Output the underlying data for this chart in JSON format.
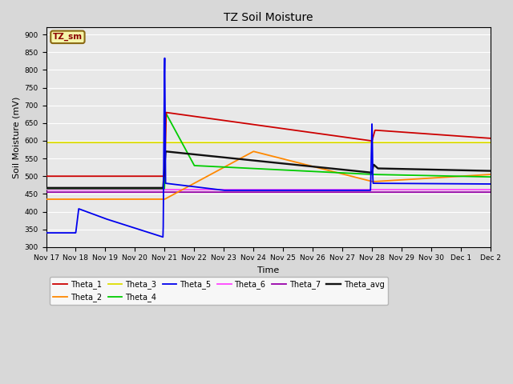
{
  "title": "TZ Soil Moisture",
  "ylabel": "Soil Moisture (mV)",
  "xlabel": "Time",
  "ylim": [
    300,
    920
  ],
  "yticks": [
    300,
    350,
    400,
    450,
    500,
    550,
    600,
    650,
    700,
    750,
    800,
    850,
    900
  ],
  "bg_color": "#d8d8d8",
  "plot_bg_color": "#e8e8e8",
  "legend_label": "TZ_sm",
  "series_colors": {
    "Theta_1": "#cc0000",
    "Theta_2": "#ff8800",
    "Theta_3": "#dddd00",
    "Theta_4": "#00cc00",
    "Theta_5": "#0000ee",
    "Theta_6": "#ff44ff",
    "Theta_7": "#9900aa",
    "Theta_avg": "#111111"
  },
  "x_tick_labels": [
    "Nov 17",
    "Nov 18",
    "Nov 19",
    "Nov 20",
    "Nov 21",
    "Nov 22",
    "Nov 23",
    "Nov 24",
    "Nov 25",
    "Nov 26",
    "Nov 27",
    "Nov 28",
    "Nov 29",
    "Nov 30",
    "Dec 1",
    "Dec 2"
  ],
  "day_positions": [
    0,
    10,
    20,
    30,
    40,
    50,
    60,
    70,
    80,
    90,
    100,
    110,
    120,
    130,
    140,
    150
  ]
}
